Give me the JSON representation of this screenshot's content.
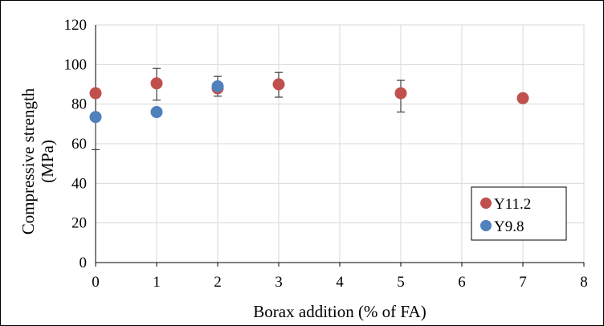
{
  "chart_data": {
    "type": "scatter",
    "title": "",
    "xlabel": "Borax addition (% of FA)",
    "ylabel_lines": [
      "Compressive strength",
      "(MPa)"
    ],
    "xlim": [
      0,
      8
    ],
    "ylim": [
      0,
      120
    ],
    "xticks": [
      0,
      1,
      2,
      3,
      4,
      5,
      6,
      7,
      8
    ],
    "yticks": [
      0,
      20,
      40,
      60,
      80,
      100,
      120
    ],
    "grid": true,
    "legend_position": "bottom-right",
    "series": [
      {
        "name": "Y11.2",
        "color": "#c0504d",
        "points": [
          {
            "x": 0,
            "y": 85.5,
            "err": null
          },
          {
            "x": 1,
            "y": 90.5,
            "err": [
              82,
              98
            ]
          },
          {
            "x": 2,
            "y": 88,
            "err": [
              84,
              94
            ]
          },
          {
            "x": 3,
            "y": 90,
            "err": [
              83.5,
              96
            ]
          },
          {
            "x": 5,
            "y": 85.5,
            "err": [
              76,
              92
            ]
          },
          {
            "x": 7,
            "y": 83,
            "err": null
          }
        ]
      },
      {
        "name": "Y9.8",
        "color": "#4f81bd",
        "points": [
          {
            "x": 0,
            "y": 73.5,
            "err": [
              57,
              73.5
            ]
          },
          {
            "x": 1,
            "y": 76,
            "err": [
              74.5,
              77
            ]
          },
          {
            "x": 2,
            "y": 89,
            "err": null
          }
        ]
      }
    ]
  }
}
